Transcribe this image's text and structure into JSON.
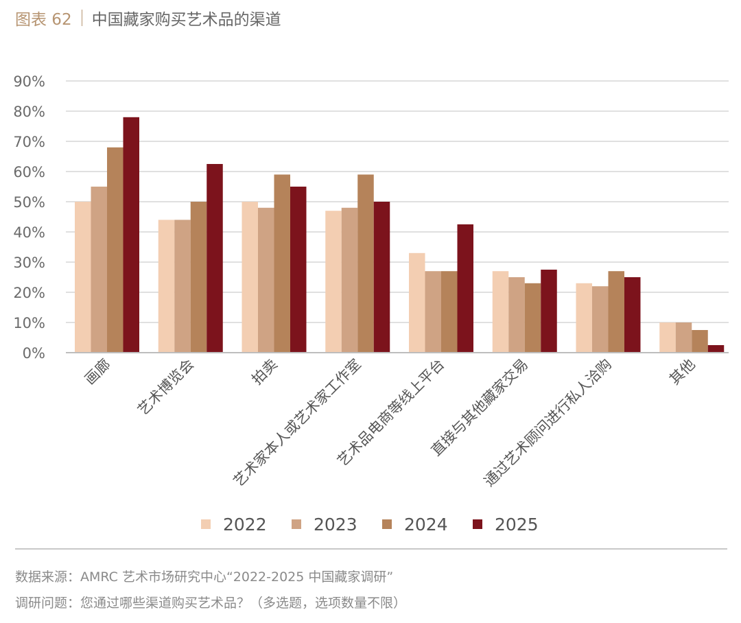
{
  "header": {
    "figure_label": "图表 62",
    "title": "中国藏家购买艺术品的渠道"
  },
  "chart_data": {
    "type": "bar",
    "categories": [
      "画廊",
      "艺术博览会",
      "拍卖",
      "艺术家本人或艺术家工作室",
      "艺术品电商等线上平台",
      "直接与其他藏家交易",
      "通过艺术顾问进行私人洽购",
      "其他"
    ],
    "series": [
      {
        "name": "2022",
        "color": "#f3ceb2",
        "values": [
          50,
          44,
          50,
          47,
          33,
          27,
          23,
          10
        ]
      },
      {
        "name": "2023",
        "color": "#cfa384",
        "values": [
          55,
          44,
          48,
          48,
          27,
          25,
          22,
          10
        ]
      },
      {
        "name": "2024",
        "color": "#b5835a",
        "values": [
          68,
          50,
          59,
          59,
          27,
          23,
          27,
          7.5
        ]
      },
      {
        "name": "2025",
        "color": "#7c131c",
        "values": [
          78,
          62.5,
          55,
          50,
          42.5,
          27.5,
          25,
          2.5
        ]
      }
    ],
    "ylim": [
      0,
      90
    ],
    "yticks": [
      "0%",
      "10%",
      "20%",
      "30%",
      "40%",
      "50%",
      "60%",
      "70%",
      "80%",
      "90%"
    ],
    "grid": true,
    "legend_position": "bottom"
  },
  "footer": {
    "source": "数据来源：AMRC 艺术市场研究中心“2022-2025 中国藏家调研”",
    "question": "调研问题：您通过哪些渠道购买艺术品？（多选题，选项数量不限）"
  }
}
